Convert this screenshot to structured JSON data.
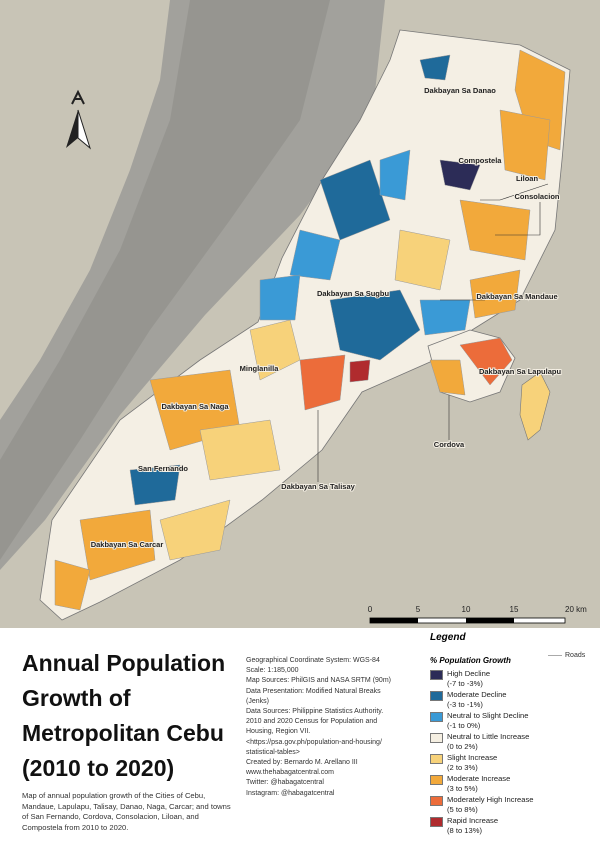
{
  "map": {
    "places": [
      "Dakbayan Sa Danao",
      "Compostela",
      "Liloan",
      "Consolacion",
      "Dakbayan Sa Sugbu",
      "Dakbayan Sa Mandaue",
      "Dakbayan Sa Lapulapu",
      "Minglanilla",
      "Dakbayan Sa Naga",
      "Cordova",
      "San Fernando",
      "Dakbayan Sa Talisay",
      "Dakbayan Sa Carcar"
    ],
    "scale": [
      "0",
      "5",
      "10",
      "15",
      "20 km"
    ]
  },
  "title": [
    "Annual Population",
    "Growth of",
    "Metropolitan Cebu",
    "(2010 to 2020)"
  ],
  "description": "Map of annual population growth of the Cities of Cebu, Mandaue, Lapulapu, Talisay, Danao, Naga, Carcar; and towns of San Fernando, Cordova, Consolacion, Liloan, and Compostela from 2010 to 2020.",
  "metadata": [
    "Geographical Coordinate System: WGS-84",
    "Scale: 1:185,000",
    "Map Sources: PhilGIS and NASA SRTM (90m)",
    "Data Presentation: Modified Natural Breaks (Jenks)",
    "Data Sources: Philippine Statistics Authority. 2010 and 2020 Census for Population and Housing, Region VII. <https://psa.gov.ph/population-and-housing/ statistical-tables>"
  ],
  "credits": [
    "Created by: Bernardo M. Arellano III",
    "www.thehabagatcentral.com",
    "Twitter: @habagatcentral",
    "Instagram: @habagatcentral"
  ],
  "legend": {
    "title": "Legend",
    "subtitle": "% Population Growth",
    "roads": "Roads",
    "items": [
      {
        "label": "High Decline",
        "range": "(-7 to -3%)",
        "color": "#2c2c57"
      },
      {
        "label": "Moderate Decline",
        "range": "(-3 to -1%)",
        "color": "#1f6a9a"
      },
      {
        "label": "Neutral to Slight Decline",
        "range": "(-1 to 0%)",
        "color": "#3a9ad6"
      },
      {
        "label": "Neutral to Little Increase",
        "range": "(0 to 2%)",
        "color": "#f5efe2"
      },
      {
        "label": "Slight Increase",
        "range": "(2 to 3%)",
        "color": "#f7d27a"
      },
      {
        "label": "Moderate Increase",
        "range": "(3 to 5%)",
        "color": "#f2a93b"
      },
      {
        "label": "Moderately High Increase",
        "range": "(5 to 8%)",
        "color": "#ec6c3a"
      },
      {
        "label": "Rapid Increase",
        "range": "(8 to 13%)",
        "color": "#b02b2e"
      }
    ]
  }
}
